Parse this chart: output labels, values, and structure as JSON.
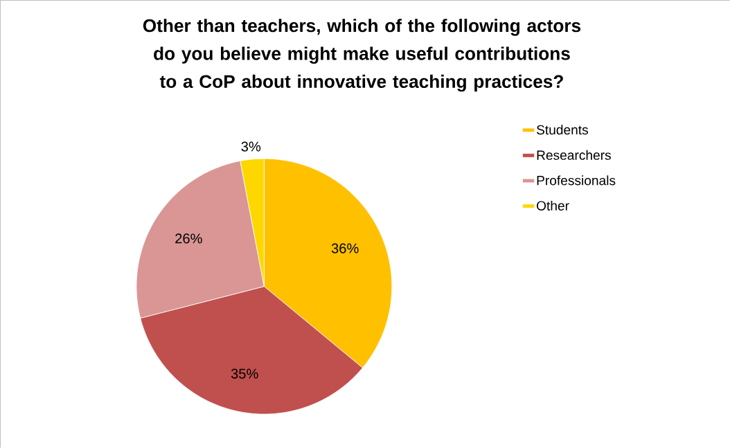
{
  "chart_data": {
    "type": "pie",
    "title": "Other than teachers, which of the following actors do you believe might make useful contributions to a CoP about innovative teaching practices?",
    "categories": [
      "Students",
      "Researchers",
      "Professionals",
      "Other"
    ],
    "values": [
      36,
      35,
      26,
      3
    ],
    "value_labels": [
      "36%",
      "35%",
      "26%",
      "3%"
    ],
    "colors": [
      "#ffc000",
      "#c0504d",
      "#d99694",
      "#ffd700"
    ],
    "legend": "right"
  }
}
